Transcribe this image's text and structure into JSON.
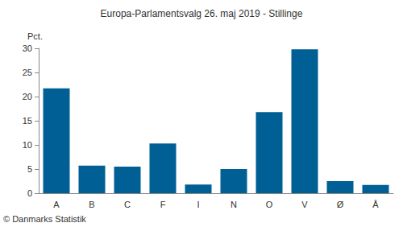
{
  "chart_data": {
    "type": "bar",
    "title": "Europa-Parlamentsvalg 26. maj 2019 - Stillinge",
    "ylabel": "Pct.",
    "source": "© Danmarks Statistik",
    "categories": [
      "A",
      "B",
      "C",
      "F",
      "I",
      "N",
      "O",
      "V",
      "Ø",
      "Å"
    ],
    "values": [
      21.7,
      5.7,
      5.5,
      10.3,
      1.8,
      5.0,
      16.8,
      29.8,
      2.5,
      1.7
    ],
    "color": "#005f94",
    "ylim": [
      0,
      30
    ],
    "yticks": [
      0,
      5,
      10,
      15,
      20,
      25,
      30
    ],
    "grid": false
  }
}
